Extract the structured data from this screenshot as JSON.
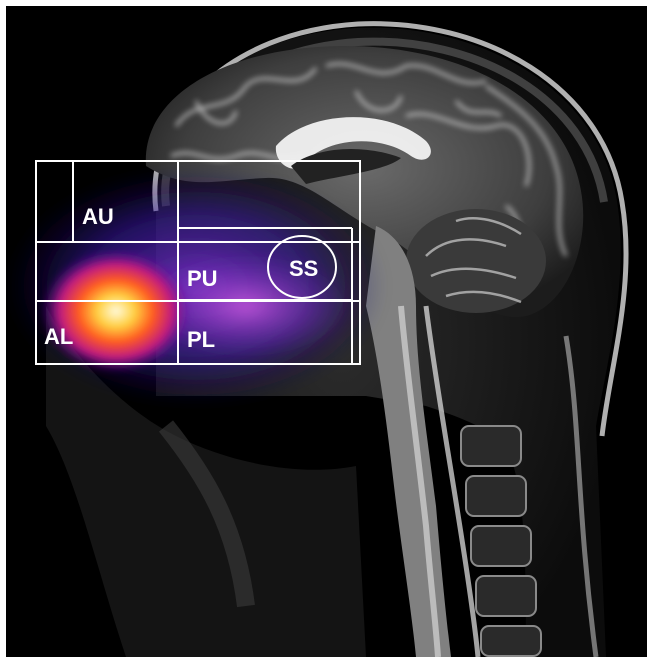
{
  "image": {
    "subject": "sagittal-brain-mri-with-heatmap-overlay",
    "regions": [
      {
        "id": "au",
        "label": "AU"
      },
      {
        "id": "pu",
        "label": "PU"
      },
      {
        "id": "ss",
        "label": "SS"
      },
      {
        "id": "al",
        "label": "AL"
      },
      {
        "id": "pl",
        "label": "PL"
      }
    ],
    "colors": {
      "background": "#000000",
      "roi_outline": "#ffffff",
      "heat_low": "#2a1a9a",
      "heat_mid": "#c040e0",
      "heat_high": "#ffd040"
    }
  }
}
